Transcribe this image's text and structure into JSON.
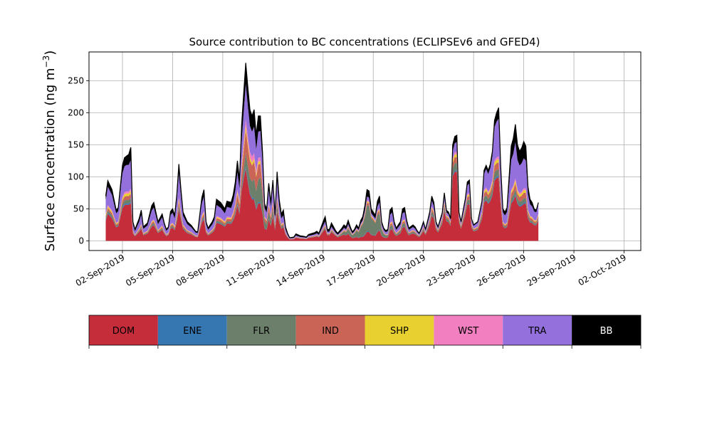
{
  "chart_data": {
    "type": "area",
    "title": "Source contribution to BC concentrations (ECLIPSEv6 and GFED4)",
    "ylabel_main": "Surface concentration (ng m",
    "ylabel_sup": "−3",
    "ylabel_close": ")",
    "xlabel": "",
    "x_start": "2019-09-01",
    "x_step_hours": 3,
    "xlim": [
      "2019-08-31",
      "2019-10-03"
    ],
    "ylim": [
      -15,
      295
    ],
    "grid": true,
    "legend_position": "bottom-colorbar",
    "x_ticks": [
      {
        "date": "2019-09-02",
        "label": "02-Sep-2019"
      },
      {
        "date": "2019-09-05",
        "label": "05-Sep-2019"
      },
      {
        "date": "2019-09-08",
        "label": "08-Sep-2019"
      },
      {
        "date": "2019-09-11",
        "label": "11-Sep-2019"
      },
      {
        "date": "2019-09-14",
        "label": "14-Sep-2019"
      },
      {
        "date": "2019-09-17",
        "label": "17-Sep-2019"
      },
      {
        "date": "2019-09-20",
        "label": "20-Sep-2019"
      },
      {
        "date": "2019-09-23",
        "label": "23-Sep-2019"
      },
      {
        "date": "2019-09-26",
        "label": "26-Sep-2019"
      },
      {
        "date": "2019-09-29",
        "label": "29-Sep-2019"
      },
      {
        "date": "2019-10-02",
        "label": "02-Oct-2019"
      }
    ],
    "y_ticks": [
      0,
      50,
      100,
      150,
      200,
      250
    ],
    "series": [
      {
        "name": "DOM",
        "color": "#c62d3a"
      },
      {
        "name": "ENE",
        "color": "#3677b2"
      },
      {
        "name": "FLR",
        "color": "#6b7f6b"
      },
      {
        "name": "IND",
        "color": "#c96457"
      },
      {
        "name": "SHP",
        "color": "#e8d030"
      },
      {
        "name": "WST",
        "color": "#f27fc0"
      },
      {
        "name": "TRA",
        "color": "#9370db"
      },
      {
        "name": "BB",
        "color": "#000000"
      }
    ],
    "total_keypoints": [
      [
        0,
        70
      ],
      [
        1,
        94
      ],
      [
        3,
        80
      ],
      [
        5,
        48
      ],
      [
        6,
        52
      ],
      [
        8,
        118
      ],
      [
        9,
        130
      ],
      [
        11,
        135
      ],
      [
        12,
        146
      ],
      [
        13,
        30
      ],
      [
        14,
        18
      ],
      [
        16,
        35
      ],
      [
        17,
        48
      ],
      [
        18,
        22
      ],
      [
        20,
        28
      ],
      [
        22,
        55
      ],
      [
        23,
        60
      ],
      [
        24,
        45
      ],
      [
        25,
        30
      ],
      [
        27,
        42
      ],
      [
        28,
        28
      ],
      [
        29,
        18
      ],
      [
        30,
        22
      ],
      [
        31,
        46
      ],
      [
        32,
        50
      ],
      [
        33,
        40
      ],
      [
        34,
        72
      ],
      [
        35,
        120
      ],
      [
        36,
        80
      ],
      [
        37,
        45
      ],
      [
        39,
        30
      ],
      [
        41,
        24
      ],
      [
        43,
        15
      ],
      [
        44,
        14
      ],
      [
        46,
        68
      ],
      [
        47,
        80
      ],
      [
        48,
        30
      ],
      [
        49,
        20
      ],
      [
        51,
        30
      ],
      [
        52,
        38
      ],
      [
        53,
        65
      ],
      [
        55,
        60
      ],
      [
        56,
        55
      ],
      [
        57,
        50
      ],
      [
        58,
        62
      ],
      [
        60,
        60
      ],
      [
        61,
        72
      ],
      [
        62,
        92
      ],
      [
        63,
        125
      ],
      [
        64,
        95
      ],
      [
        65,
        180
      ],
      [
        66,
        230
      ],
      [
        67,
        278
      ],
      [
        68,
        240
      ],
      [
        69,
        205
      ],
      [
        70,
        195
      ],
      [
        71,
        205
      ],
      [
        72,
        165
      ],
      [
        73,
        195
      ],
      [
        74,
        195
      ],
      [
        75,
        140
      ],
      [
        76,
        58
      ],
      [
        77,
        50
      ],
      [
        78,
        90
      ],
      [
        79,
        60
      ],
      [
        80,
        95
      ],
      [
        81,
        40
      ],
      [
        82,
        108
      ],
      [
        83,
        65
      ],
      [
        84,
        42
      ],
      [
        85,
        48
      ],
      [
        86,
        22
      ],
      [
        87,
        12
      ],
      [
        88,
        5
      ],
      [
        90,
        6
      ],
      [
        91,
        11
      ],
      [
        93,
        8
      ],
      [
        95,
        7
      ],
      [
        96,
        6
      ],
      [
        97,
        10
      ],
      [
        99,
        12
      ],
      [
        100,
        13
      ],
      [
        101,
        15
      ],
      [
        102,
        12
      ],
      [
        104,
        30
      ],
      [
        105,
        38
      ],
      [
        106,
        18
      ],
      [
        107,
        18
      ],
      [
        108,
        28
      ],
      [
        109,
        22
      ],
      [
        110,
        16
      ],
      [
        111,
        12
      ],
      [
        113,
        20
      ],
      [
        114,
        25
      ],
      [
        115,
        22
      ],
      [
        116,
        32
      ],
      [
        117,
        22
      ],
      [
        118,
        14
      ],
      [
        119,
        18
      ],
      [
        120,
        25
      ],
      [
        121,
        20
      ],
      [
        122,
        32
      ],
      [
        123,
        38
      ],
      [
        124,
        55
      ],
      [
        125,
        80
      ],
      [
        126,
        78
      ],
      [
        127,
        50
      ],
      [
        128,
        45
      ],
      [
        129,
        40
      ],
      [
        130,
        62
      ],
      [
        131,
        70
      ],
      [
        132,
        30
      ],
      [
        133,
        20
      ],
      [
        134,
        16
      ],
      [
        135,
        18
      ],
      [
        136,
        48
      ],
      [
        137,
        52
      ],
      [
        138,
        30
      ],
      [
        139,
        20
      ],
      [
        141,
        30
      ],
      [
        142,
        50
      ],
      [
        143,
        52
      ],
      [
        144,
        32
      ],
      [
        145,
        20
      ],
      [
        147,
        25
      ],
      [
        148,
        22
      ],
      [
        149,
        16
      ],
      [
        150,
        12
      ],
      [
        151,
        20
      ],
      [
        152,
        30
      ],
      [
        153,
        18
      ],
      [
        155,
        45
      ],
      [
        156,
        70
      ],
      [
        157,
        60
      ],
      [
        158,
        30
      ],
      [
        159,
        22
      ],
      [
        161,
        44
      ],
      [
        162,
        75
      ],
      [
        163,
        48
      ],
      [
        164,
        45
      ],
      [
        165,
        35
      ],
      [
        166,
        150
      ],
      [
        167,
        163
      ],
      [
        168,
        165
      ],
      [
        169,
        45
      ],
      [
        170,
        30
      ],
      [
        172,
        65
      ],
      [
        173,
        92
      ],
      [
        174,
        95
      ],
      [
        175,
        35
      ],
      [
        176,
        25
      ],
      [
        178,
        30
      ],
      [
        180,
        62
      ],
      [
        181,
        110
      ],
      [
        182,
        118
      ],
      [
        183,
        110
      ],
      [
        184,
        120
      ],
      [
        185,
        140
      ],
      [
        186,
        188
      ],
      [
        187,
        200
      ],
      [
        188,
        208
      ],
      [
        189,
        115
      ],
      [
        190,
        50
      ],
      [
        191,
        45
      ],
      [
        192,
        52
      ],
      [
        193,
        100
      ],
      [
        194,
        148
      ],
      [
        195,
        160
      ],
      [
        196,
        182
      ],
      [
        197,
        150
      ],
      [
        198,
        140
      ],
      [
        199,
        145
      ],
      [
        200,
        155
      ],
      [
        201,
        148
      ],
      [
        202,
        85
      ],
      [
        203,
        65
      ],
      [
        204,
        60
      ],
      [
        205,
        50
      ],
      [
        206,
        48
      ],
      [
        207,
        60
      ]
    ],
    "fraction_keypoints": {
      "DOM": [
        [
          0,
          0.45
        ],
        [
          12,
          0.4
        ],
        [
          30,
          0.42
        ],
        [
          60,
          0.45
        ],
        [
          67,
          0.48
        ],
        [
          72,
          0.4
        ],
        [
          85,
          0.5
        ],
        [
          110,
          0.5
        ],
        [
          123,
          0.18
        ],
        [
          128,
          0.22
        ],
        [
          150,
          0.5
        ],
        [
          166,
          0.72
        ],
        [
          185,
          0.55
        ],
        [
          190,
          0.55
        ],
        [
          200,
          0.4
        ],
        [
          207,
          0.55
        ]
      ],
      "ENE": [
        [
          0,
          0.015
        ],
        [
          207,
          0.015
        ]
      ],
      "FLR": [
        [
          0,
          0.04
        ],
        [
          65,
          0.04
        ],
        [
          75,
          0.3
        ],
        [
          78,
          0.15
        ],
        [
          85,
          0.05
        ],
        [
          110,
          0.05
        ],
        [
          118,
          0.3
        ],
        [
          123,
          0.55
        ],
        [
          128,
          0.6
        ],
        [
          131,
          0.4
        ],
        [
          136,
          0.1
        ],
        [
          207,
          0.04
        ]
      ],
      "IND": [
        [
          0,
          0.04
        ],
        [
          60,
          0.06
        ],
        [
          67,
          0.15
        ],
        [
          72,
          0.18
        ],
        [
          76,
          0.12
        ],
        [
          85,
          0.05
        ],
        [
          166,
          0.06
        ],
        [
          207,
          0.06
        ]
      ],
      "SHP": [
        [
          0,
          0.03
        ],
        [
          207,
          0.03
        ]
      ],
      "WST": [
        [
          0,
          0.02
        ],
        [
          65,
          0.03
        ],
        [
          70,
          0.06
        ],
        [
          76,
          0.03
        ],
        [
          207,
          0.02
        ]
      ],
      "TRA": [
        [
          0,
          0.3
        ],
        [
          10,
          0.3
        ],
        [
          40,
          0.32
        ],
        [
          65,
          0.22
        ],
        [
          75,
          0.3
        ],
        [
          90,
          0.2
        ],
        [
          123,
          0.08
        ],
        [
          128,
          0.08
        ],
        [
          135,
          0.25
        ],
        [
          166,
          0.08
        ],
        [
          181,
          0.25
        ],
        [
          186,
          0.3
        ],
        [
          193,
          0.4
        ],
        [
          207,
          0.25
        ]
      ],
      "BB": [
        [
          0,
          0.1
        ],
        [
          10,
          0.1
        ],
        [
          13,
          0.15
        ],
        [
          30,
          0.12
        ],
        [
          65,
          0.15
        ],
        [
          67,
          0.14
        ],
        [
          72,
          0.18
        ],
        [
          80,
          0.12
        ],
        [
          90,
          0.25
        ],
        [
          123,
          0.15
        ],
        [
          128,
          0.15
        ],
        [
          150,
          0.12
        ],
        [
          166,
          0.07
        ],
        [
          181,
          0.05
        ],
        [
          186,
          0.06
        ],
        [
          193,
          0.18
        ],
        [
          200,
          0.18
        ],
        [
          207,
          0.05
        ]
      ]
    }
  }
}
